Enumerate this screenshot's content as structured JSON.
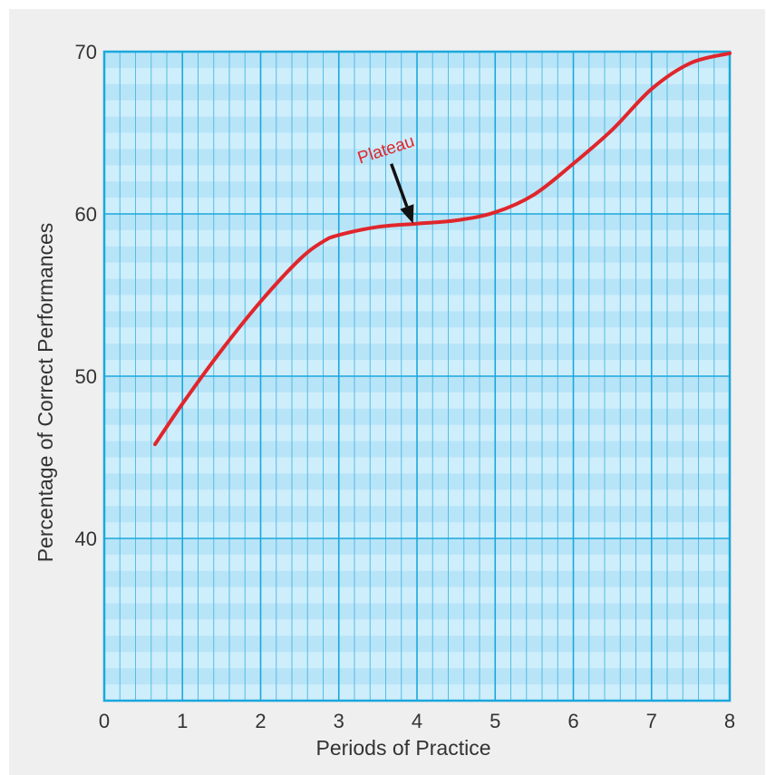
{
  "chart_data": {
    "type": "line",
    "title": "",
    "xlabel": "Periods of Practice",
    "ylabel": "Percentage of Correct Performances",
    "xlim": [
      0,
      8
    ],
    "ylim": [
      30,
      70
    ],
    "x_ticks": [
      0,
      1,
      2,
      3,
      4,
      5,
      6,
      7,
      8
    ],
    "x_tick_labels": [
      "0",
      "1",
      "2",
      "3",
      "4",
      "5",
      "6",
      "7",
      "8"
    ],
    "y_ticks": [
      40,
      50,
      60,
      70
    ],
    "y_tick_labels": [
      "40",
      "50",
      "60",
      "70"
    ],
    "grid": true,
    "series": [
      {
        "color": "#e0262c",
        "x": [
          0.65,
          1.0,
          1.5,
          2.0,
          2.5,
          2.8,
          3.0,
          3.5,
          4.0,
          4.5,
          5.0,
          5.5,
          6.0,
          6.5,
          7.0,
          7.5,
          8.0
        ],
        "y": [
          45.8,
          48.3,
          51.6,
          54.6,
          57.2,
          58.3,
          58.7,
          59.2,
          59.4,
          59.6,
          60.1,
          61.2,
          63.1,
          65.2,
          67.7,
          69.3,
          69.9
        ]
      }
    ],
    "annotations": [
      {
        "text": "Plateau",
        "point": [
          3.95,
          59.4
        ],
        "color": "#e0262c",
        "arrow_color": "#111111"
      }
    ],
    "colors": {
      "background": "#cfeefb",
      "band": "#b8e4f8",
      "major_grid": "#1aa8dd",
      "minor_grid": "#52bde6",
      "axis": "#1aa8dd",
      "curve": "#e0262c",
      "arrow": "#111111"
    }
  }
}
